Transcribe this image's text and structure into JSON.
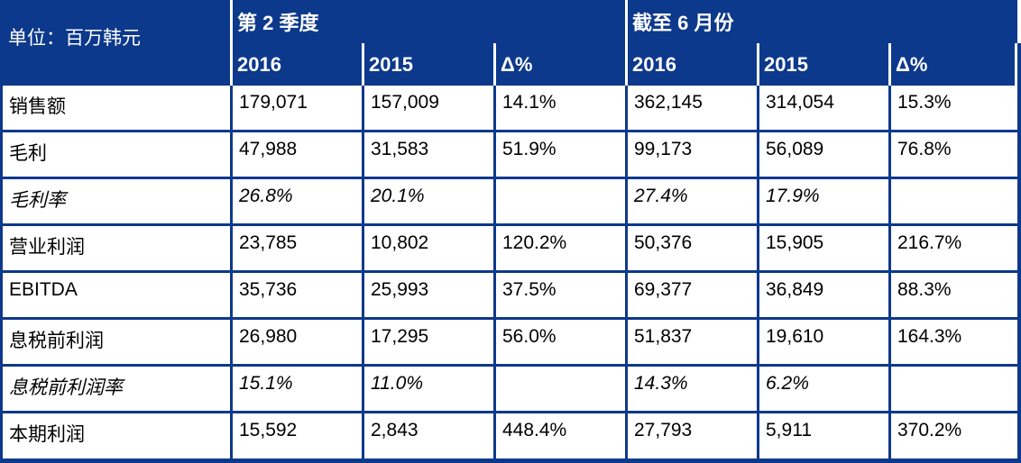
{
  "unit_label": "单位：百万韩元",
  "colors": {
    "header_bg": "#0d398c",
    "grid": "#0d398c",
    "header_text": "#ffffff",
    "body_text": "#000000"
  },
  "table": {
    "groups": [
      {
        "label": "第 2 季度",
        "columns": [
          "2016",
          "2015",
          "Δ%"
        ]
      },
      {
        "label": "截至 6 月份",
        "columns": [
          "2016",
          "2015",
          "Δ%"
        ]
      }
    ],
    "rows": [
      {
        "label": "销售额",
        "italic": false,
        "values": [
          "179,071",
          "157,009",
          "14.1%",
          "362,145",
          "314,054",
          "15.3%"
        ]
      },
      {
        "label": "毛利",
        "italic": false,
        "values": [
          "47,988",
          "31,583",
          "51.9%",
          "99,173",
          "56,089",
          "76.8%"
        ]
      },
      {
        "label": "毛利率",
        "italic": true,
        "values": [
          "26.8%",
          "20.1%",
          "",
          "27.4%",
          "17.9%",
          ""
        ]
      },
      {
        "label": "营业利润",
        "italic": false,
        "values": [
          "23,785",
          "10,802",
          "120.2%",
          "50,376",
          "15,905",
          "216.7%"
        ]
      },
      {
        "label": "EBITDA",
        "italic": false,
        "values": [
          "35,736",
          "25,993",
          "37.5%",
          "69,377",
          "36,849",
          "88.3%"
        ]
      },
      {
        "label": "息税前利润",
        "italic": false,
        "values": [
          "26,980",
          "17,295",
          "56.0%",
          "51,837",
          "19,610",
          "164.3%"
        ]
      },
      {
        "label": "息税前利润率",
        "italic": true,
        "values": [
          "15.1%",
          "11.0%",
          "",
          "14.3%",
          "6.2%",
          ""
        ]
      },
      {
        "label": "本期利润",
        "italic": false,
        "values": [
          "15,592",
          "2,843",
          "448.4%",
          "27,793",
          "5,911",
          "370.2%"
        ]
      }
    ]
  }
}
